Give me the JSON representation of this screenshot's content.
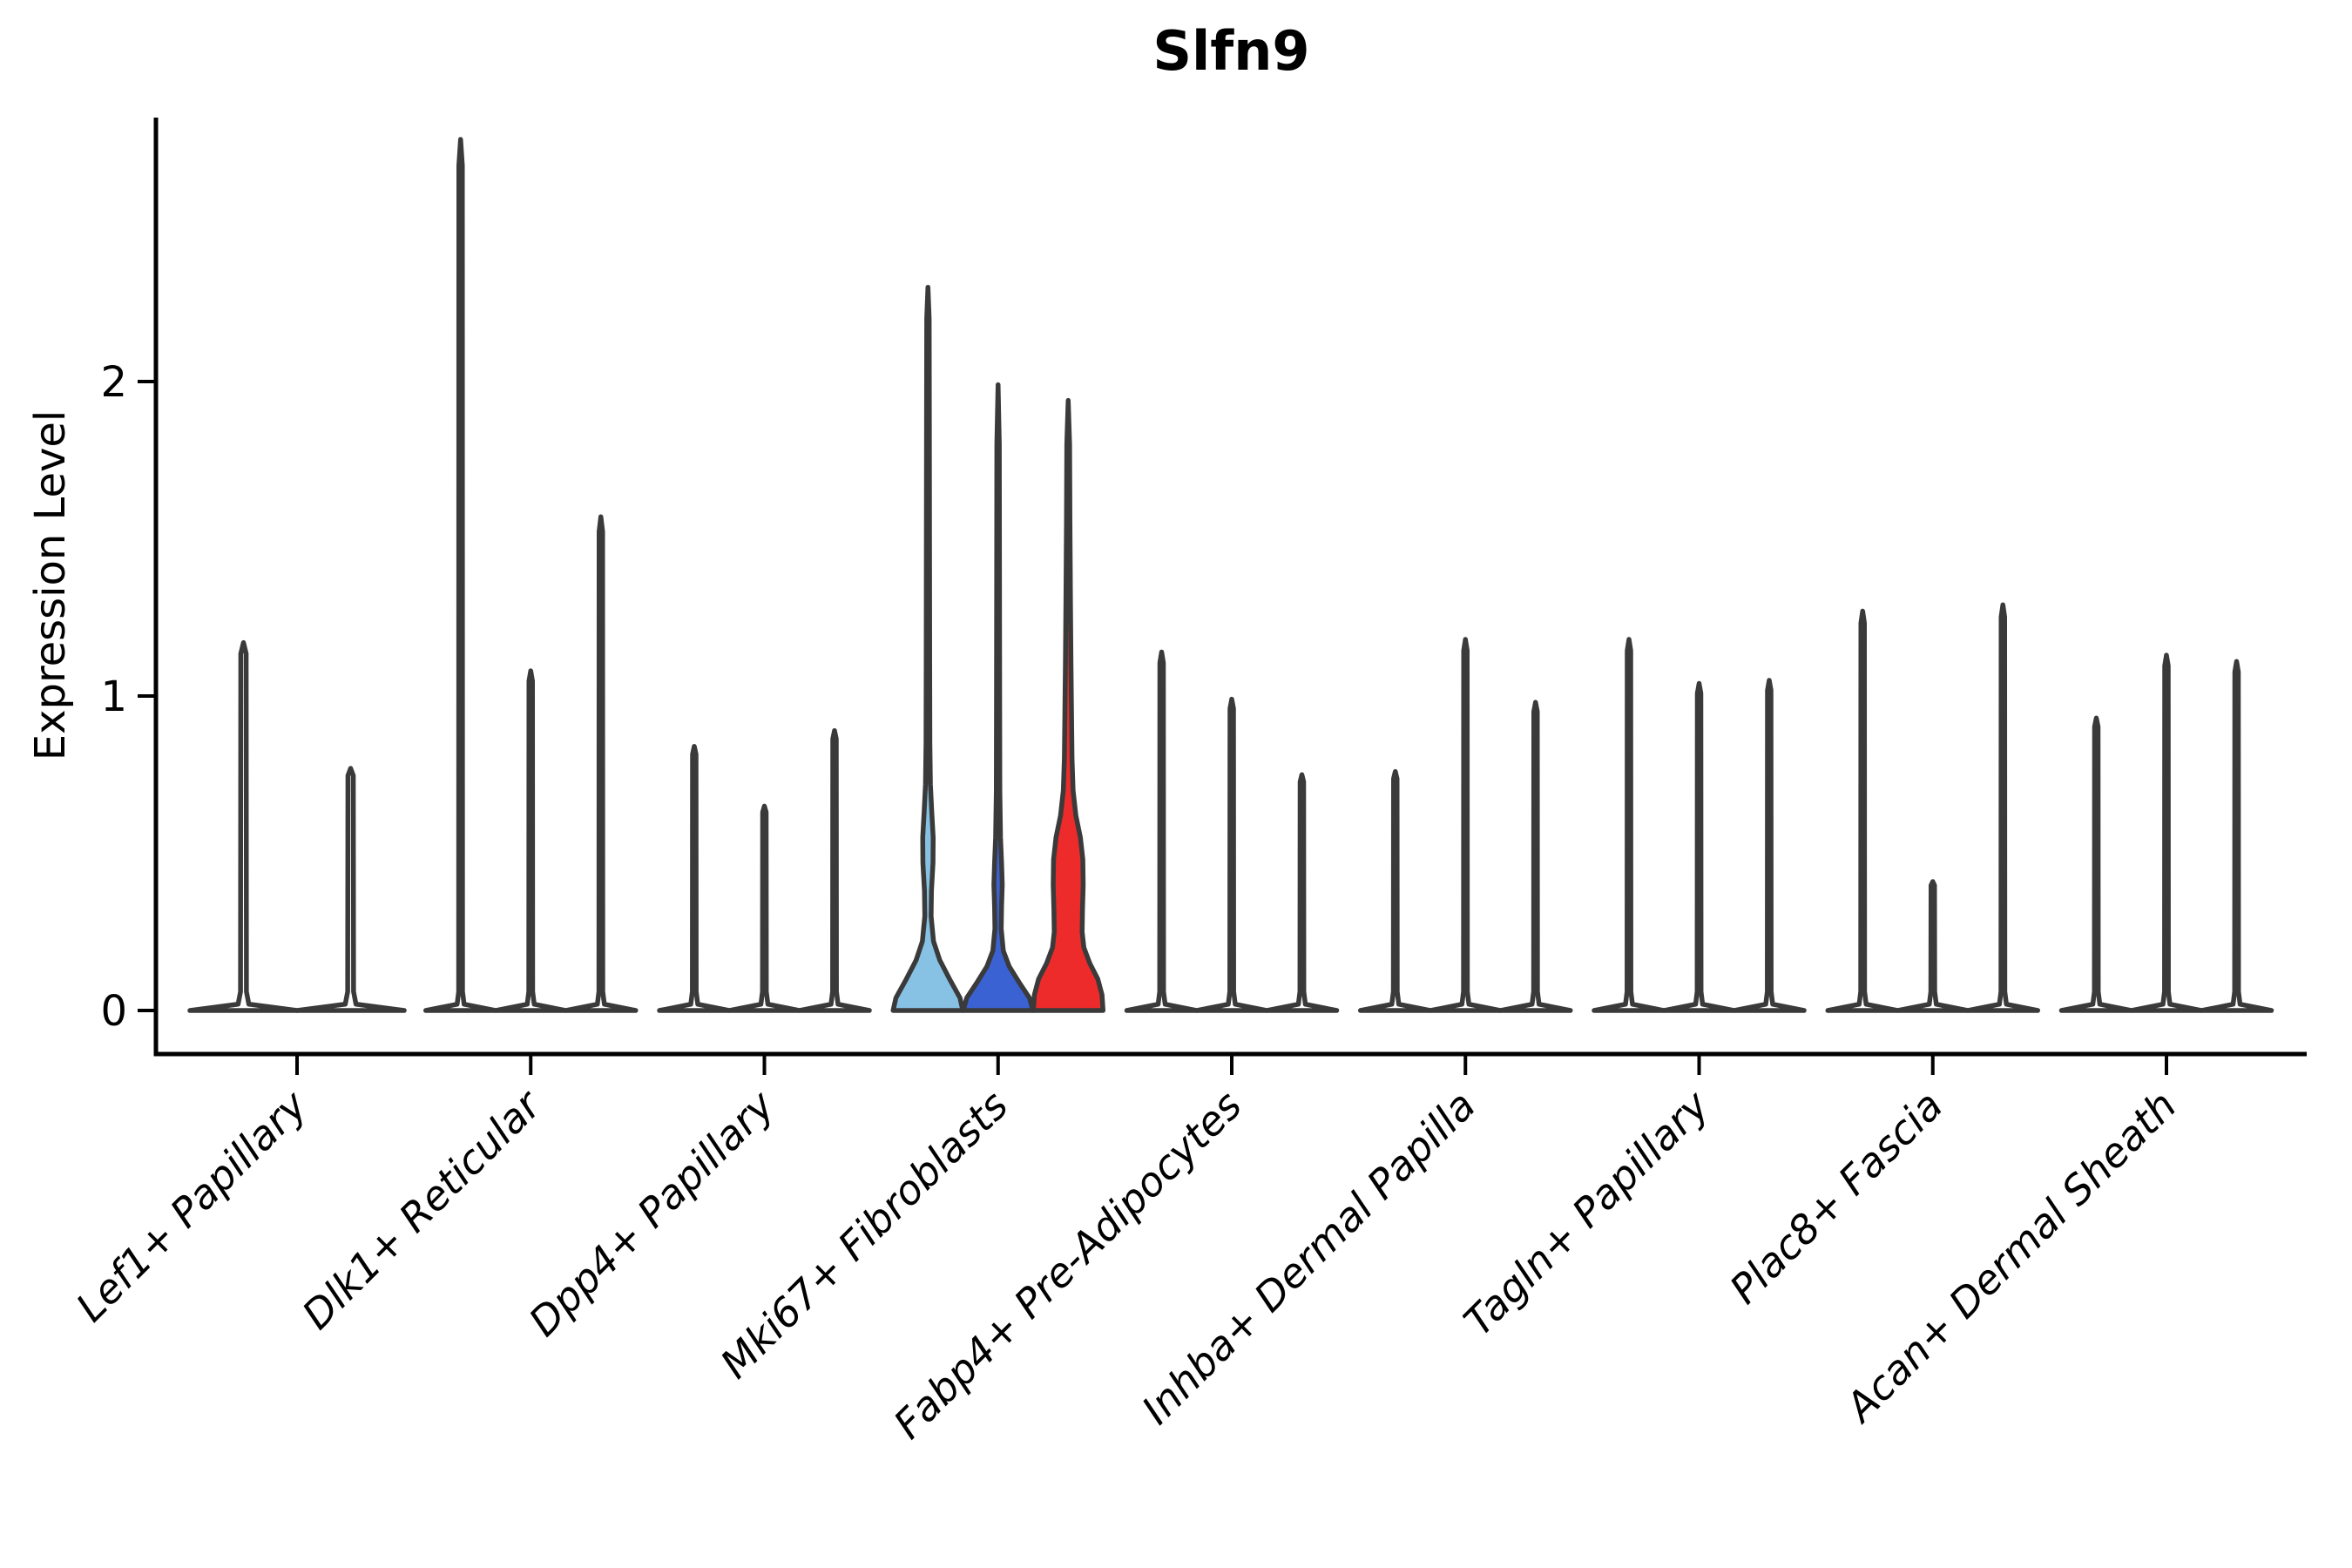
{
  "chart_data": {
    "type": "violin",
    "title": "Slfn9",
    "ylabel": "Expression Level",
    "xlabel": "",
    "yticks": [
      0,
      1,
      2
    ],
    "ylim": [
      -0.05,
      2.85
    ],
    "grid": false,
    "legend": "none",
    "edge_color": "#3A3A3A",
    "highlight_colors": {
      "light_blue": "#87C2E5",
      "blue": "#3B62D2",
      "red": "#EE2B2B"
    },
    "categories": [
      "Lef1+ Papillary",
      "Dlk1+ Reticular",
      "Dpp4+ Papillary",
      "Mki67+ Fibroblasts",
      "Fabp4+ Pre-Adipocytes",
      "Inhba+ Dermal Papilla",
      "Tagln+ Papillary",
      "Plac8+ Fascia",
      "Acan+ Dermal Sheath"
    ],
    "groups": [
      {
        "label": "Lef1+ Papillary",
        "violins": [
          {
            "max": 1.17,
            "fill": "#FFFFFF"
          },
          {
            "max": 0.77,
            "fill": "#FFFFFF"
          }
        ]
      },
      {
        "label": "Dlk1+ Reticular",
        "violins": [
          {
            "max": 2.77,
            "fill": "#FFFFFF"
          },
          {
            "max": 1.08,
            "fill": "#FFFFFF"
          },
          {
            "max": 1.57,
            "fill": "#FFFFFF"
          }
        ]
      },
      {
        "label": "Dpp4+ Papillary",
        "violins": [
          {
            "max": 0.84,
            "fill": "#FFFFFF"
          },
          {
            "max": 0.65,
            "fill": "#FFFFFF"
          },
          {
            "max": 0.89,
            "fill": "#FFFFFF"
          }
        ]
      },
      {
        "label": "Mki67+ Fibroblasts",
        "violins": [
          {
            "max": 2.3,
            "fill": "#87C2E5",
            "profile": [
              [
                0,
                1
              ],
              [
                0.04,
                0.92
              ],
              [
                0.1,
                0.62
              ],
              [
                0.16,
                0.34
              ],
              [
                0.22,
                0.16
              ],
              [
                0.3,
                0.09
              ],
              [
                0.38,
                0.1
              ],
              [
                0.47,
                0.145
              ],
              [
                0.55,
                0.15
              ],
              [
                0.63,
                0.11
              ],
              [
                0.72,
                0.07
              ],
              [
                0.85,
                0.055
              ],
              [
                1.1,
                0.05
              ],
              [
                1.5,
                0.045
              ],
              [
                1.9,
                0.04
              ],
              [
                2.2,
                0.035
              ],
              [
                2.3,
                0
              ]
            ]
          },
          {
            "max": 1.99,
            "fill": "#3B62D2",
            "profile": [
              [
                0,
                1
              ],
              [
                0.04,
                0.9
              ],
              [
                0.09,
                0.6
              ],
              [
                0.14,
                0.32
              ],
              [
                0.19,
                0.15
              ],
              [
                0.26,
                0.09
              ],
              [
                0.33,
                0.1
              ],
              [
                0.4,
                0.12
              ],
              [
                0.47,
                0.1
              ],
              [
                0.55,
                0.07
              ],
              [
                0.7,
                0.05
              ],
              [
                1.0,
                0.045
              ],
              [
                1.4,
                0.04
              ],
              [
                1.8,
                0.035
              ],
              [
                1.99,
                0
              ]
            ]
          },
          {
            "max": 1.94,
            "fill": "#EE2B2B",
            "profile": [
              [
                0,
                1
              ],
              [
                0.05,
                0.97
              ],
              [
                0.1,
                0.85
              ],
              [
                0.15,
                0.62
              ],
              [
                0.2,
                0.45
              ],
              [
                0.25,
                0.4
              ],
              [
                0.32,
                0.41
              ],
              [
                0.4,
                0.43
              ],
              [
                0.48,
                0.42
              ],
              [
                0.55,
                0.35
              ],
              [
                0.62,
                0.22
              ],
              [
                0.7,
                0.14
              ],
              [
                0.8,
                0.11
              ],
              [
                0.95,
                0.095
              ],
              [
                1.1,
                0.08
              ],
              [
                1.3,
                0.065
              ],
              [
                1.55,
                0.05
              ],
              [
                1.8,
                0.04
              ],
              [
                1.94,
                0
              ]
            ]
          }
        ]
      },
      {
        "label": "Fabp4+ Pre-Adipocytes",
        "violins": [
          {
            "max": 1.14,
            "fill": "#FFFFFF"
          },
          {
            "max": 0.99,
            "fill": "#FFFFFF"
          },
          {
            "max": 0.75,
            "fill": "#FFFFFF"
          }
        ]
      },
      {
        "label": "Inhba+ Dermal Papilla",
        "violins": [
          {
            "max": 0.76,
            "fill": "#FFFFFF"
          },
          {
            "max": 1.18,
            "fill": "#FFFFFF"
          },
          {
            "max": 0.98,
            "fill": "#FFFFFF"
          }
        ]
      },
      {
        "label": "Tagln+ Papillary",
        "violins": [
          {
            "max": 1.18,
            "fill": "#FFFFFF"
          },
          {
            "max": 1.04,
            "fill": "#FFFFFF"
          },
          {
            "max": 1.05,
            "fill": "#FFFFFF"
          }
        ]
      },
      {
        "label": "Plac8+ Fascia",
        "violins": [
          {
            "max": 1.27,
            "fill": "#FFFFFF"
          },
          {
            "max": 0.41,
            "fill": "#FFFFFF"
          },
          {
            "max": 1.29,
            "fill": "#FFFFFF"
          }
        ]
      },
      {
        "label": "Acan+ Dermal Sheath",
        "violins": [
          {
            "max": 0.93,
            "fill": "#FFFFFF"
          },
          {
            "max": 1.13,
            "fill": "#FFFFFF"
          },
          {
            "max": 1.11,
            "fill": "#FFFFFF"
          }
        ]
      }
    ]
  }
}
